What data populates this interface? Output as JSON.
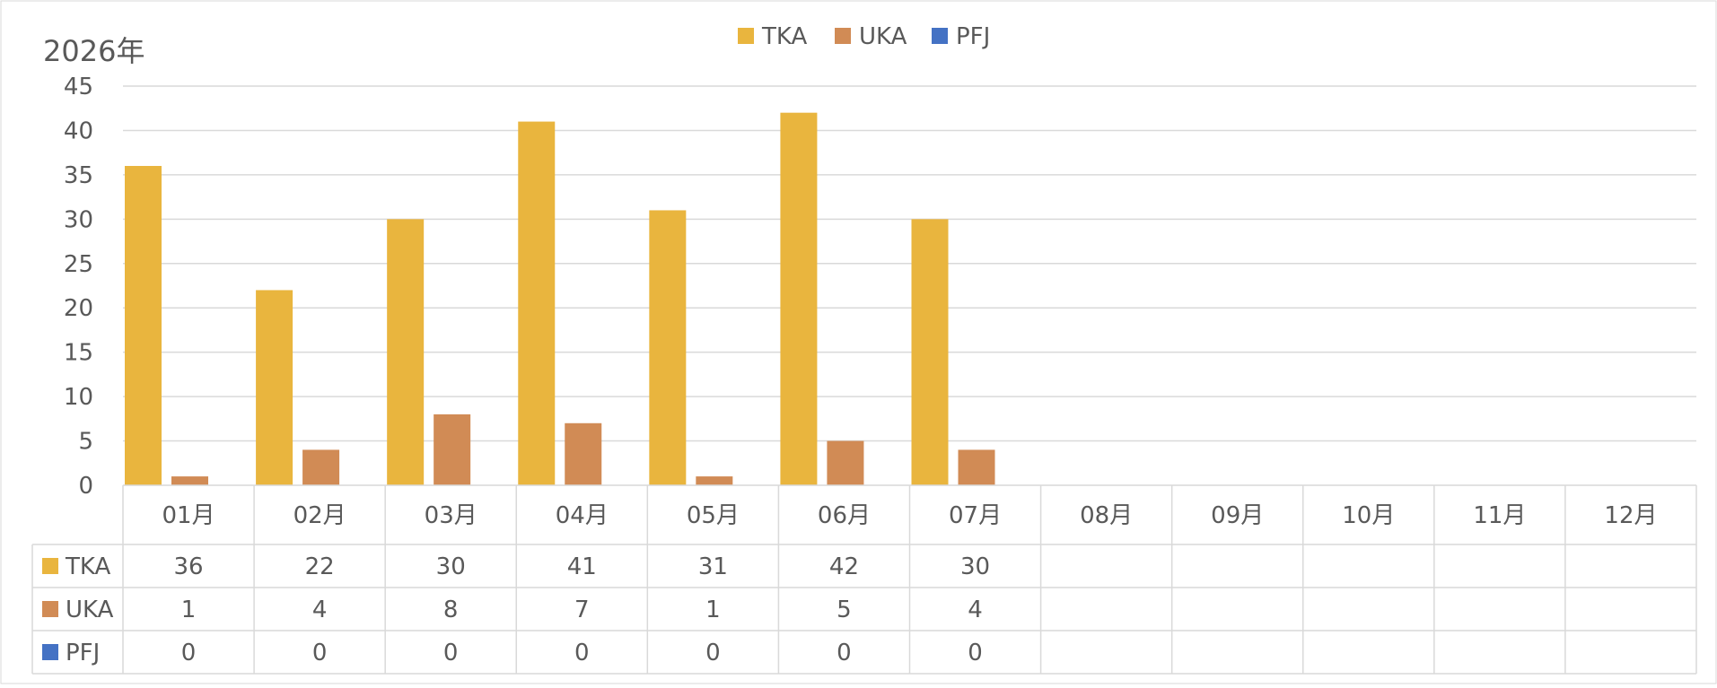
{
  "chart_data": {
    "type": "bar",
    "title": "2026年",
    "categories": [
      "01月",
      "02月",
      "03月",
      "04月",
      "05月",
      "06月",
      "07月",
      "08月",
      "09月",
      "10月",
      "11月",
      "12月"
    ],
    "series": [
      {
        "name": "TKA",
        "color": "#E9B53E",
        "values": [
          36,
          22,
          30,
          41,
          31,
          42,
          30,
          null,
          null,
          null,
          null,
          null
        ]
      },
      {
        "name": "UKA",
        "color": "#D18B55",
        "values": [
          1,
          4,
          8,
          7,
          1,
          5,
          4,
          null,
          null,
          null,
          null,
          null
        ]
      },
      {
        "name": "PFJ",
        "color": "#4472C4",
        "values": [
          0,
          0,
          0,
          0,
          0,
          0,
          0,
          null,
          null,
          null,
          null,
          null
        ]
      }
    ],
    "ylim": [
      0,
      45
    ],
    "yticks": [
      0,
      5,
      10,
      15,
      20,
      25,
      30,
      35,
      40,
      45
    ],
    "grid": true,
    "legend_position": "top-center",
    "data_table": true,
    "colors": {
      "gridline": "#D9D9D9",
      "text": "#595959",
      "table_border": "#D9D9D9"
    }
  }
}
